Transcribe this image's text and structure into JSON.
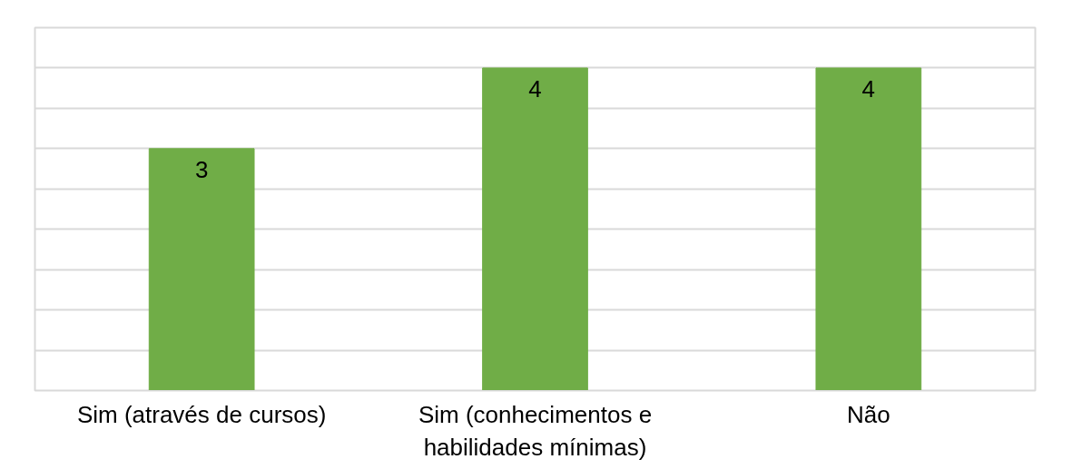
{
  "chart_data": {
    "type": "bar",
    "categories": [
      "Sim (através de cursos)",
      "Sim (conhecimentos e habilidades mínimas)",
      "Não"
    ],
    "values": [
      3,
      4,
      4
    ],
    "color": "#70ad47",
    "data_labels": true,
    "ylim": [
      0,
      4.5
    ],
    "yticks": [
      {
        "value": 0,
        "label": null
      },
      {
        "value": 0.5,
        "label": null
      },
      {
        "value": 1,
        "label": null
      },
      {
        "value": 1.5,
        "label": null
      },
      {
        "value": 2,
        "label": null
      },
      {
        "value": 2.5,
        "label": null
      },
      {
        "value": 3,
        "label": null
      },
      {
        "value": 3.5,
        "label": null
      },
      {
        "value": 4,
        "label": null
      },
      {
        "value": 4.5,
        "label": null
      }
    ],
    "grid": "y",
    "tick_labels": "x"
  }
}
